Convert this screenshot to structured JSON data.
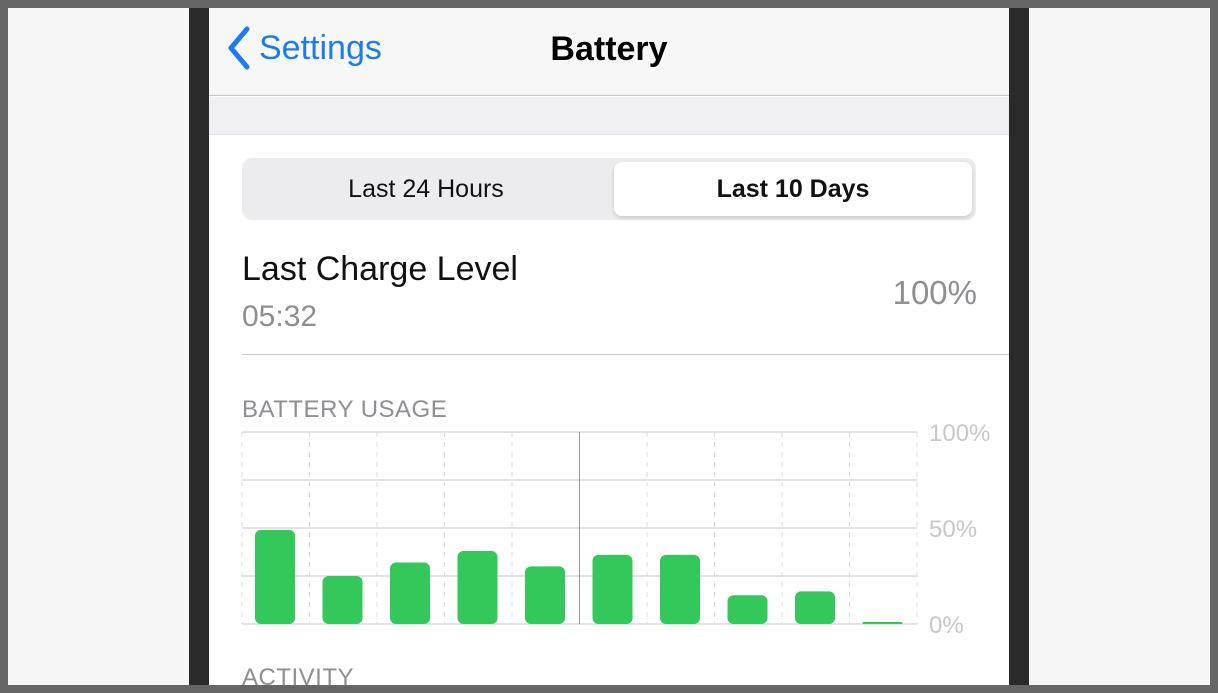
{
  "nav": {
    "back_label": "Settings",
    "title": "Battery"
  },
  "segmented": {
    "options": [
      "Last 24 Hours",
      "Last 10 Days"
    ],
    "selected": "Last 10 Days"
  },
  "last_charge": {
    "label": "Last Charge Level",
    "time": "05:32",
    "value": "100%"
  },
  "sections": {
    "usage": "BATTERY USAGE",
    "activity": "ACTIVITY"
  },
  "colors": {
    "accent": "#1a7cf0",
    "bar": "#34c759"
  },
  "chart_data": {
    "type": "bar",
    "values": [
      49,
      25,
      32,
      38,
      30,
      36,
      36,
      15,
      17,
      1
    ],
    "ylim": [
      0,
      100
    ],
    "y_ticks": [
      "100%",
      "50%",
      "0%"
    ],
    "grid": true
  }
}
